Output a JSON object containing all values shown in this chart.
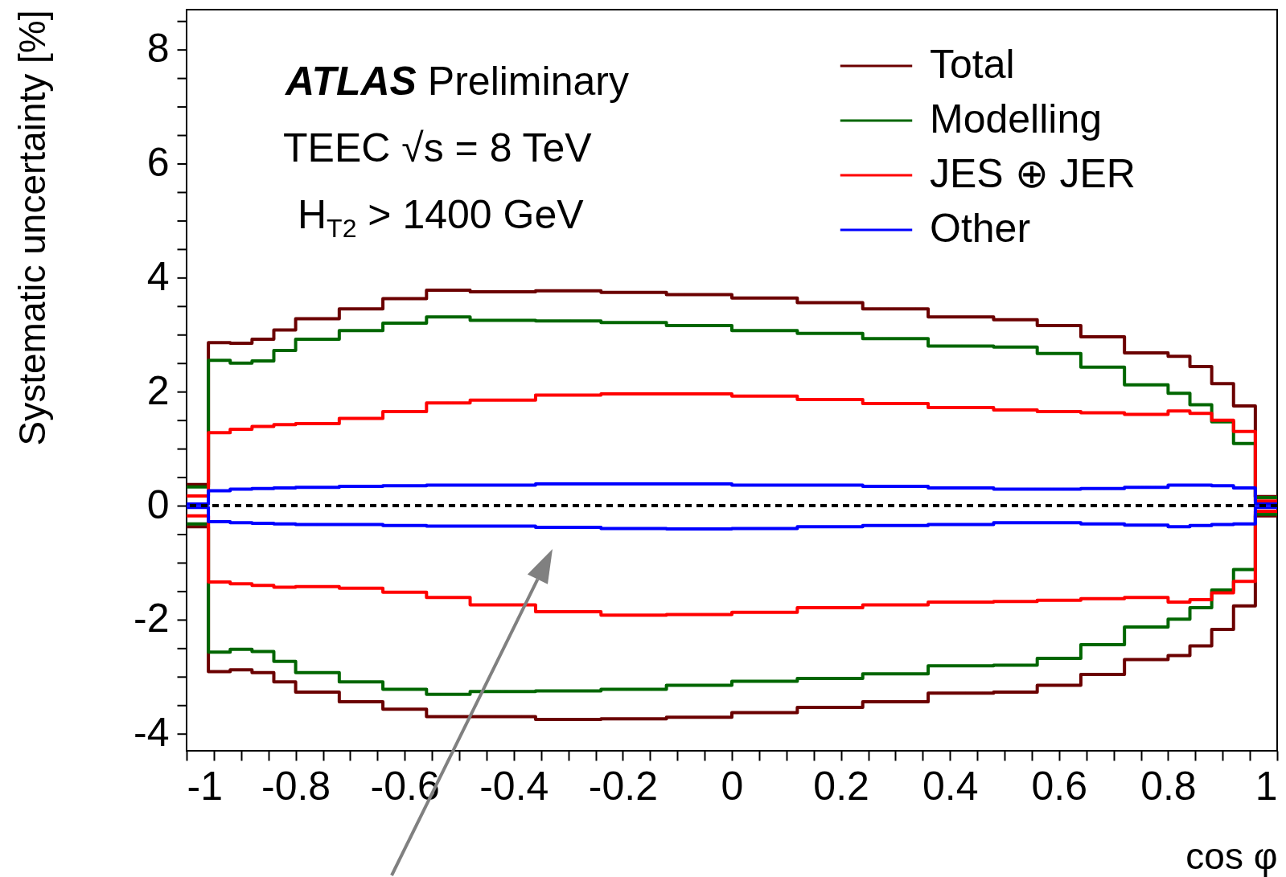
{
  "chart_data": {
    "type": "histogram",
    "xlabel": "cos φ",
    "ylabel": "Systematic uncertainty [%]",
    "annotations": [
      "ATLAS Preliminary",
      "TEEC √s = 8 TeV",
      "H$_{T2}$ > 1400 GeV"
    ],
    "bins": [
      -1,
      -0.96,
      -0.92,
      -0.88,
      -0.84,
      -0.8,
      -0.72,
      -0.64,
      -0.56,
      -0.48,
      -0.36,
      -0.24,
      -0.12,
      0,
      0.12,
      0.24,
      0.36,
      0.48,
      0.56,
      0.64,
      0.72,
      0.8,
      0.84,
      0.88,
      0.92,
      0.96,
      1
    ],
    "series": [
      {
        "name": "Total",
        "color": "#6b0000",
        "values": [
          0.37,
          2.86,
          2.85,
          2.92,
          3.08,
          3.28,
          3.45,
          3.63,
          3.78,
          3.75,
          3.77,
          3.74,
          3.7,
          3.64,
          3.56,
          3.45,
          3.31,
          3.26,
          3.16,
          2.96,
          2.68,
          2.62,
          2.44,
          2.14,
          1.75,
          0.16
        ]
      },
      {
        "name": "Modelling",
        "color": "#006600",
        "values": [
          0.33,
          2.55,
          2.5,
          2.54,
          2.72,
          2.92,
          3.07,
          3.2,
          3.31,
          3.25,
          3.24,
          3.21,
          3.16,
          3.07,
          3.02,
          2.93,
          2.8,
          2.78,
          2.67,
          2.43,
          2.12,
          1.97,
          1.77,
          1.47,
          1.09,
          0.14
        ]
      },
      {
        "name": "JES ⊕ JER",
        "color": "#ff0000",
        "values": [
          0.17,
          1.28,
          1.34,
          1.39,
          1.42,
          1.44,
          1.53,
          1.65,
          1.8,
          1.85,
          1.94,
          1.96,
          1.96,
          1.92,
          1.86,
          1.79,
          1.72,
          1.68,
          1.65,
          1.63,
          1.6,
          1.66,
          1.62,
          1.5,
          1.3,
          0.08
        ]
      },
      {
        "name": "Other",
        "color": "#0000ff",
        "values": [
          0.03,
          0.26,
          0.29,
          0.3,
          0.31,
          0.32,
          0.34,
          0.35,
          0.36,
          0.36,
          0.38,
          0.38,
          0.38,
          0.36,
          0.36,
          0.34,
          0.31,
          0.29,
          0.29,
          0.3,
          0.32,
          0.36,
          0.36,
          0.35,
          0.31,
          0.03
        ]
      },
      {
        "color": "#6b0000",
        "values": [
          -0.37,
          -2.91,
          -2.88,
          -2.93,
          -3.09,
          -3.27,
          -3.44,
          -3.57,
          -3.7,
          -3.7,
          -3.75,
          -3.74,
          -3.71,
          -3.63,
          -3.54,
          -3.44,
          -3.29,
          -3.27,
          -3.15,
          -2.96,
          -2.7,
          -2.63,
          -2.46,
          -2.17,
          -1.76,
          -0.18
        ]
      },
      {
        "color": "#006600",
        "values": [
          -0.32,
          -2.57,
          -2.52,
          -2.56,
          -2.73,
          -2.93,
          -3.09,
          -3.22,
          -3.31,
          -3.26,
          -3.25,
          -3.22,
          -3.15,
          -3.08,
          -3.03,
          -2.95,
          -2.81,
          -2.8,
          -2.68,
          -2.44,
          -2.13,
          -1.99,
          -1.79,
          -1.48,
          -1.12,
          -0.15
        ]
      },
      {
        "color": "#ff0000",
        "values": [
          -0.18,
          -1.34,
          -1.37,
          -1.4,
          -1.43,
          -1.42,
          -1.45,
          -1.52,
          -1.61,
          -1.74,
          -1.86,
          -1.92,
          -1.91,
          -1.87,
          -1.79,
          -1.74,
          -1.69,
          -1.68,
          -1.66,
          -1.63,
          -1.61,
          -1.69,
          -1.65,
          -1.53,
          -1.33,
          -0.1
        ]
      },
      {
        "color": "#0000ff",
        "values": [
          -0.03,
          -0.28,
          -0.3,
          -0.31,
          -0.32,
          -0.33,
          -0.33,
          -0.35,
          -0.36,
          -0.36,
          -0.38,
          -0.4,
          -0.41,
          -0.4,
          -0.37,
          -0.35,
          -0.33,
          -0.3,
          -0.3,
          -0.32,
          -0.34,
          -0.37,
          -0.35,
          -0.33,
          -0.32,
          -0.03
        ]
      }
    ],
    "ref_lines": [
      {
        "axis": "y",
        "value": 0,
        "color": "#000000",
        "line_style": "dashed"
      }
    ],
    "xlim": [
      -1,
      1
    ],
    "ylim": [
      -4.3,
      8.7
    ],
    "xticks": [
      -1,
      {
        "value": -0.95,
        "label": null
      },
      {
        "value": -0.9,
        "label": null
      },
      {
        "value": -0.85,
        "label": null
      },
      -0.8,
      {
        "value": -0.75,
        "label": null
      },
      {
        "value": -0.7,
        "label": null
      },
      {
        "value": -0.65,
        "label": null
      },
      -0.6,
      {
        "value": -0.55,
        "label": null
      },
      {
        "value": -0.5,
        "label": null
      },
      {
        "value": -0.45,
        "label": null
      },
      -0.4,
      {
        "value": -0.35,
        "label": null
      },
      {
        "value": -0.3,
        "label": null
      },
      {
        "value": -0.25,
        "label": null
      },
      -0.2,
      {
        "value": -0.15,
        "label": null
      },
      {
        "value": -0.1,
        "label": null
      },
      {
        "value": -0.05,
        "label": null
      },
      0,
      {
        "value": 0.05,
        "label": null
      },
      {
        "value": 0.1,
        "label": null
      },
      {
        "value": 0.15,
        "label": null
      },
      0.2,
      {
        "value": 0.25,
        "label": null
      },
      {
        "value": 0.3,
        "label": null
      },
      {
        "value": 0.35,
        "label": null
      },
      0.4,
      {
        "value": 0.45,
        "label": null
      },
      {
        "value": 0.5,
        "label": null
      },
      {
        "value": 0.55,
        "label": null
      },
      0.6,
      {
        "value": 0.65,
        "label": null
      },
      {
        "value": 0.7,
        "label": null
      },
      {
        "value": 0.75,
        "label": null
      },
      0.8,
      {
        "value": 0.85,
        "label": null
      },
      {
        "value": 0.9,
        "label": null
      },
      {
        "value": 0.95,
        "label": null
      },
      1
    ],
    "yticks": [
      -4,
      {
        "value": -3.5,
        "label": null
      },
      {
        "value": -3,
        "label": null
      },
      {
        "value": -2.5,
        "label": null
      },
      -2,
      {
        "value": -1.5,
        "label": null
      },
      {
        "value": -1,
        "label": null
      },
      {
        "value": -0.5,
        "label": null
      },
      0,
      {
        "value": 0.5,
        "label": null
      },
      {
        "value": 1,
        "label": null
      },
      {
        "value": 1.5,
        "label": null
      },
      2,
      {
        "value": 2.5,
        "label": null
      },
      {
        "value": 3,
        "label": null
      },
      {
        "value": 3.5,
        "label": null
      },
      4,
      {
        "value": 4.5,
        "label": null
      },
      {
        "value": 5,
        "label": null
      },
      {
        "value": 5.5,
        "label": null
      },
      6,
      {
        "value": 6.5,
        "label": null
      },
      {
        "value": 7,
        "label": null
      },
      {
        "value": 7.5,
        "label": null
      },
      8,
      {
        "value": 8.5,
        "label": null
      }
    ],
    "legend": "top right",
    "marker": "none",
    "line_style": "solid"
  }
}
